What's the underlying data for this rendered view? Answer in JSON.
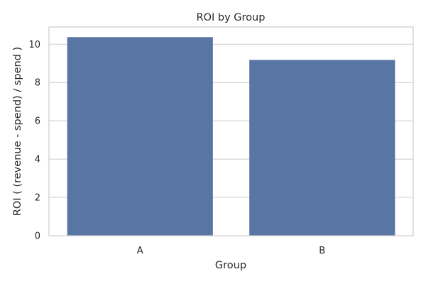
{
  "chart_data": {
    "type": "bar",
    "title": "ROI by Group",
    "xlabel": "Group",
    "ylabel": "ROI ( (revenue - spend) / spend )",
    "categories": [
      "A",
      "B"
    ],
    "values": [
      10.37,
      9.18
    ],
    "ylim": [
      0,
      10.9
    ],
    "yticks": [
      0,
      2,
      4,
      6,
      8,
      10
    ],
    "grid": "horizontal",
    "bar_color": "#5975a4"
  }
}
